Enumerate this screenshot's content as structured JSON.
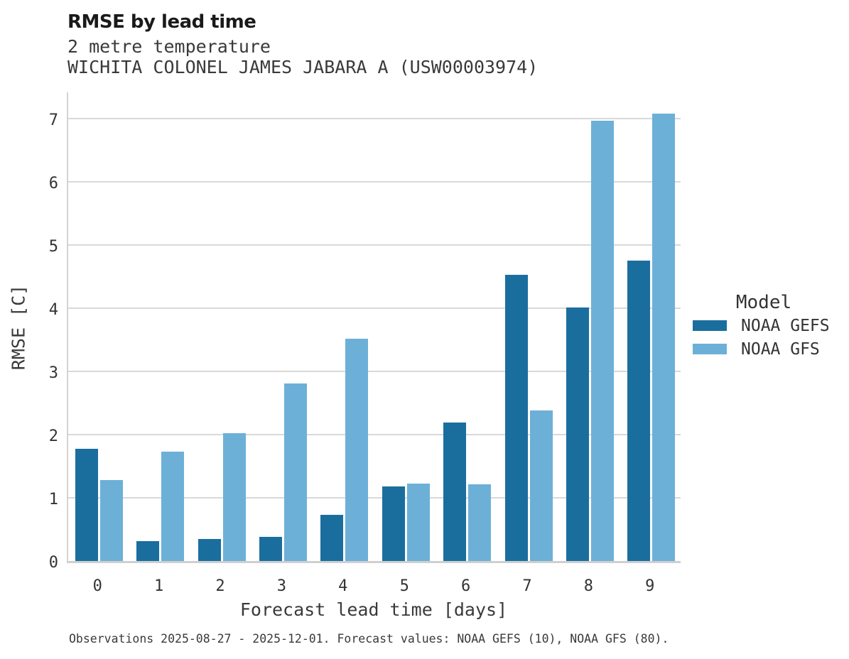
{
  "chart_data": {
    "type": "bar",
    "title": "RMSE by lead time",
    "subtitle_lines": [
      "2 metre temperature",
      "WICHITA COLONEL JAMES JABARA A (USW00003974)"
    ],
    "categories": [
      "0",
      "1",
      "2",
      "3",
      "4",
      "5",
      "6",
      "7",
      "8",
      "9"
    ],
    "series": [
      {
        "name": "NOAA GEFS",
        "color": "#1A6E9E",
        "values": [
          1.77,
          0.31,
          0.35,
          0.38,
          0.73,
          1.18,
          2.19,
          4.53,
          4.01,
          4.75
        ]
      },
      {
        "name": "NOAA GFS",
        "color": "#6CB0D8",
        "values": [
          1.28,
          1.73,
          2.02,
          2.81,
          3.52,
          1.22,
          1.21,
          2.38,
          6.97,
          7.08
        ]
      }
    ],
    "xlabel": "Forecast lead time [days]",
    "ylabel": "RMSE [C]",
    "ylim": [
      0,
      7.45
    ],
    "yticks": [
      0,
      1,
      2,
      3,
      4,
      5,
      6,
      7
    ],
    "grid": true,
    "legend_title": "Model",
    "legend_position": "center-right"
  },
  "footer_note": "Observations 2025-08-27 - 2025-12-01. Forecast values: NOAA GEFS (10), NOAA GFS (80).",
  "style_colors": {
    "series_dark": "#1A6E9E",
    "series_light": "#6CB0D8",
    "gridline": "#D9D9D9",
    "axis_line": "#CFCFCF",
    "title_text": "#1A1A1A",
    "body_text": "#3A3A3A"
  }
}
